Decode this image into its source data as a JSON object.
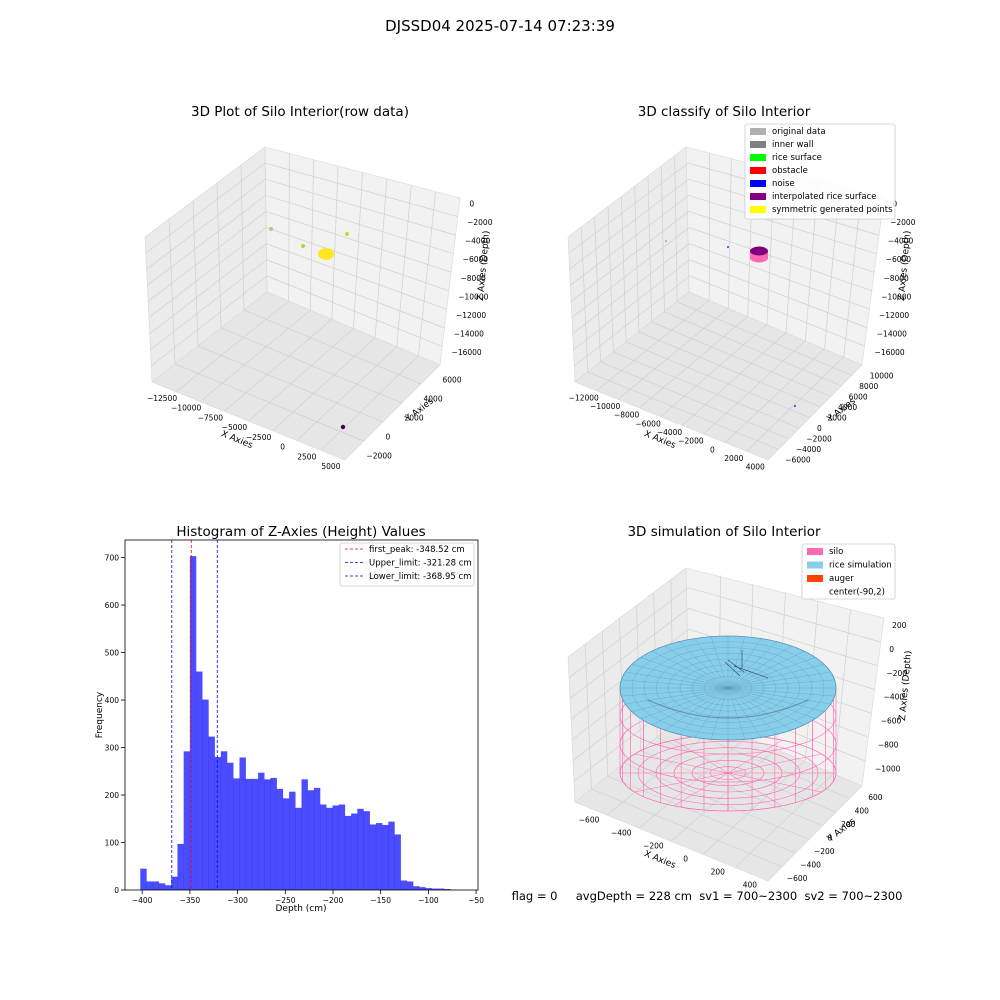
{
  "suptitle": "DJSSD04 2025-07-14 07:23:39",
  "footer_text": "flag = 0     avgDepth = 228 cm  sv1 = 700~2300  sv2 = 700~2300",
  "chart_data": [
    {
      "type": "scatter",
      "title": "3D Plot of Silo Interior(row data)",
      "xlabel": "X Axies",
      "ylabel": "Y Axies",
      "zlabel": "Z Axies (Depth)",
      "x_ticks": [
        "−12500",
        "−10000",
        "−7500",
        "−5000",
        "−2500",
        "0",
        "2500",
        "5000"
      ],
      "y_ticks": [
        "−2000",
        "0",
        "2000",
        "4000",
        "6000"
      ],
      "z_ticks": [
        "0",
        "−2000",
        "−4000",
        "−6000",
        "−8000",
        "−10000",
        "−12000",
        "−14000",
        "−16000"
      ],
      "grid": true
    },
    {
      "type": "scatter",
      "title": "3D classify of Silo Interior",
      "xlabel": "X Axies",
      "ylabel": "Y Axies",
      "zlabel": "Z Axies (Depth)",
      "x_ticks": [
        "−12000",
        "−10000",
        "−8000",
        "−6000",
        "−4000",
        "−2000",
        "0",
        "2000",
        "4000"
      ],
      "y_ticks": [
        "−6000",
        "−4000",
        "−2000",
        "0",
        "2000",
        "4000",
        "6000",
        "8000",
        "10000"
      ],
      "z_ticks": [
        "0",
        "−2000",
        "−4000",
        "−6000",
        "−8000",
        "−10000",
        "−12000",
        "−14000",
        "−16000"
      ],
      "legend_position": "top-right",
      "legend": [
        {
          "label": "original data",
          "color": "#b0b0b0"
        },
        {
          "label": "inner wall",
          "color": "#808080"
        },
        {
          "label": "rice surface",
          "color": "#00ff00"
        },
        {
          "label": "obstacle",
          "color": "#ff0000"
        },
        {
          "label": "noise",
          "color": "#0000ff"
        },
        {
          "label": "interpolated rice surface",
          "color": "#800080"
        },
        {
          "label": "symmetric generated points",
          "color": "#ffff00"
        }
      ],
      "grid": true
    },
    {
      "type": "bar",
      "title": "Histogram of Z-Axies (Height) Values",
      "xlabel": "Depth (cm)",
      "ylabel": "Frequency",
      "xlim": [
        -418,
        -48
      ],
      "ylim": [
        0,
        737
      ],
      "x_ticks": [
        -400,
        -350,
        -300,
        -250,
        -200,
        -150,
        -100,
        -50
      ],
      "y_ticks": [
        0,
        100,
        200,
        300,
        400,
        500,
        600,
        700
      ],
      "bin_start": -402,
      "bin_width": 6.5,
      "values": [
        45,
        18,
        18,
        14,
        10,
        28,
        97,
        292,
        703,
        460,
        401,
        323,
        280,
        292,
        268,
        235,
        279,
        234,
        234,
        247,
        233,
        236,
        213,
        193,
        207,
        173,
        233,
        210,
        215,
        180,
        173,
        178,
        180,
        156,
        161,
        171,
        166,
        138,
        141,
        137,
        144,
        117,
        20,
        18,
        8,
        6,
        4,
        3,
        3,
        2,
        1
      ],
      "bar_color": "#0000ff",
      "bar_alpha": 0.7,
      "vlines": [
        {
          "label": "first_peak: -348.52 cm",
          "x": -348.52,
          "color": "#ff0000"
        },
        {
          "label": "Upper_limit: -321.28 cm",
          "x": -321.28,
          "color": "#0000ff"
        },
        {
          "label": "Lower_limit: -368.95 cm",
          "x": -368.95,
          "color": "#0000ff"
        }
      ],
      "legend_position": "top-right"
    },
    {
      "type": "scatter",
      "title": "3D simulation of Silo Interior",
      "xlabel": "X Axies",
      "ylabel": "Y Axies",
      "zlabel": "Z Axies (Depth)",
      "x_ticks": [
        "−600",
        "−400",
        "−200",
        "0",
        "200",
        "400"
      ],
      "y_ticks": [
        "−600",
        "−400",
        "−200",
        "0",
        "200",
        "400",
        "600"
      ],
      "z_ticks": [
        "200",
        "0",
        "−200",
        "−400",
        "−600",
        "−800",
        "−1000"
      ],
      "legend_position": "top-right",
      "legend": [
        {
          "label": "silo",
          "color": "#ff69b4"
        },
        {
          "label": "rice simulation",
          "color": "#87ceeb"
        },
        {
          "label": "auger",
          "color": "#ff4500"
        },
        {
          "label": "center(-90,2)",
          "color": ""
        }
      ],
      "grid": true
    }
  ]
}
